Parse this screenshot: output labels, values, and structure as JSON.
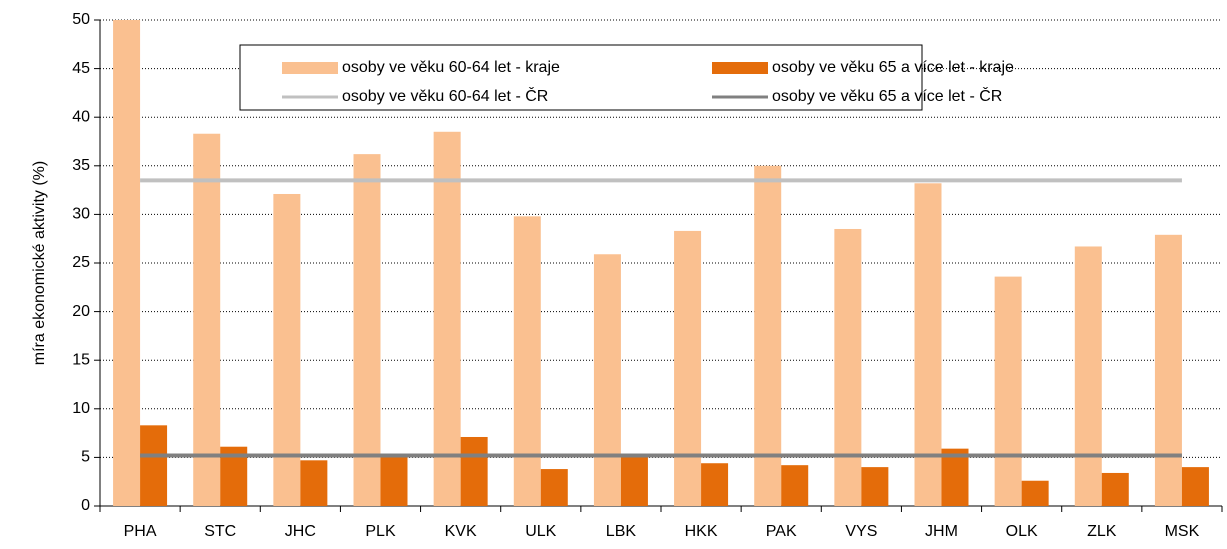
{
  "chart_data": {
    "type": "bar",
    "ylabel": "míra ekonomické aktivity (%)",
    "categories": [
      "PHA",
      "STC",
      "JHC",
      "PLK",
      "KVK",
      "ULK",
      "LBK",
      "HKK",
      "PAK",
      "VYS",
      "JHM",
      "OLK",
      "ZLK",
      "MSK"
    ],
    "series": [
      {
        "name": "osoby ve věku 60-64 let - kraje",
        "kind": "bar",
        "color": "#fac090",
        "values": [
          50,
          38.3,
          32.1,
          36.2,
          38.5,
          29.8,
          25.9,
          28.3,
          35.0,
          28.5,
          33.2,
          23.6,
          26.7,
          27.9
        ]
      },
      {
        "name": "osoby ve věku 65 a více let - kraje",
        "kind": "bar",
        "color": "#e46c0a",
        "values": [
          8.3,
          6.1,
          4.7,
          5.0,
          7.1,
          3.8,
          5.0,
          4.4,
          4.2,
          4.0,
          5.9,
          2.6,
          3.4,
          4.0
        ]
      },
      {
        "name": "osoby ve věku 60-64 let - ČR",
        "kind": "line",
        "color": "#c0c0c0",
        "values": [
          33.5,
          33.5,
          33.5,
          33.5,
          33.5,
          33.5,
          33.5,
          33.5,
          33.5,
          33.5,
          33.5,
          33.5,
          33.5,
          33.5
        ]
      },
      {
        "name": "osoby ve věku 65 a více let - ČR",
        "kind": "line",
        "color": "#808080",
        "values": [
          5.2,
          5.2,
          5.2,
          5.2,
          5.2,
          5.2,
          5.2,
          5.2,
          5.2,
          5.2,
          5.2,
          5.2,
          5.2,
          5.2
        ]
      }
    ],
    "ylim": [
      0,
      50
    ],
    "yticks": [
      0,
      5,
      10,
      15,
      20,
      25,
      30,
      35,
      40,
      45,
      50
    ],
    "grid": true
  }
}
